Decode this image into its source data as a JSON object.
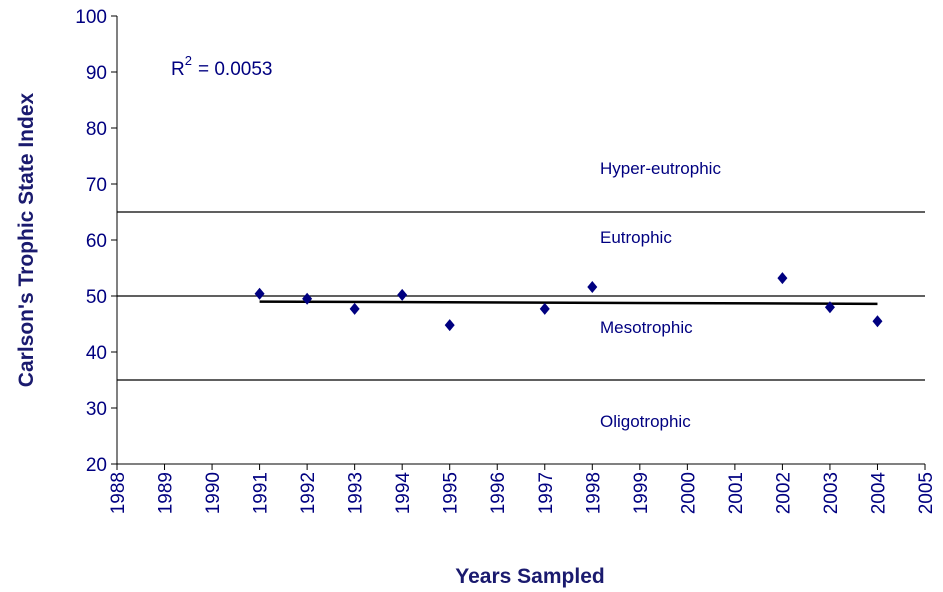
{
  "chart_data": {
    "type": "scatter",
    "x_label": "Years Sampled",
    "y_label": "Carlson's Trophic State Index",
    "x": [
      1991,
      1992,
      1993,
      1994,
      1995,
      1997,
      1998,
      2002,
      2003,
      2004
    ],
    "values": [
      50.4,
      49.5,
      47.7,
      50.2,
      44.8,
      47.7,
      51.6,
      53.2,
      48.0,
      45.5
    ],
    "color": "#000080",
    "trendline": {
      "x": [
        1991,
        2004
      ],
      "values": [
        49.0,
        48.6
      ]
    },
    "reference_lines": [
      65,
      50,
      35
    ],
    "zones": [
      "Hyper-eutrophic",
      "Eutrophic",
      "Mesotrophic",
      "Oligotrophic"
    ],
    "r_squared": {
      "symbol": "R",
      "exponent": "2",
      "text": "= 0.0053"
    },
    "xlim": [
      1988,
      2005
    ],
    "xticks": [
      1988,
      1989,
      1990,
      1991,
      1992,
      1993,
      1994,
      1995,
      1996,
      1997,
      1998,
      1999,
      2000,
      2001,
      2002,
      2003,
      2004,
      2005
    ],
    "ylim": [
      20,
      100
    ],
    "yticks": [
      20,
      30,
      40,
      50,
      60,
      70,
      80,
      90,
      100
    ]
  }
}
